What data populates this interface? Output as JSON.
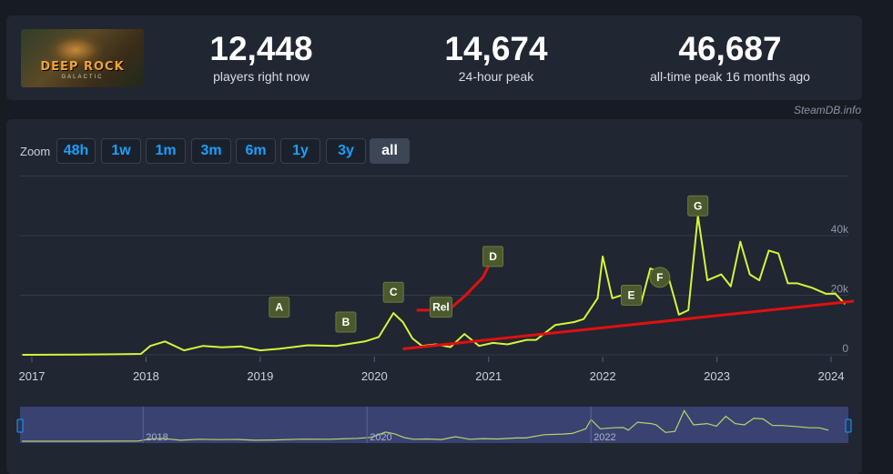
{
  "stats": {
    "now": {
      "value": "12,448",
      "label": "players right now"
    },
    "peak24": {
      "value": "14,674",
      "label": "24-hour peak"
    },
    "alltime": {
      "value": "46,687",
      "label": "all-time peak 16 months ago"
    }
  },
  "logo": {
    "title": "DEEP ROCK",
    "subtitle": "GALACTIC"
  },
  "credit": "SteamDB.info",
  "zoom": {
    "label": "Zoom",
    "buttons": [
      "48h",
      "1w",
      "1m",
      "3m",
      "6m",
      "1y",
      "3y",
      "all"
    ],
    "active": "all"
  },
  "colors": {
    "line": "#d4f53a",
    "annotation": "#e01010",
    "marker_bg": "#4a5a2c",
    "accent": "#1a9fff",
    "navigator_bg": "#3a4272"
  },
  "chart_data": {
    "type": "line",
    "x_ticks": [
      "2017",
      "2018",
      "2019",
      "2020",
      "2021",
      "2022",
      "2023",
      "2024"
    ],
    "y_ticks": [
      "0",
      "20k",
      "40k"
    ],
    "ylim": [
      0,
      60000
    ],
    "grid": true,
    "series": [
      {
        "values": [
          [
            "2016-12-01",
            0
          ],
          [
            "2017-06-01",
            50
          ],
          [
            "2017-12-15",
            300
          ],
          [
            "2018-01-15",
            3000
          ],
          [
            "2018-03-01",
            4500
          ],
          [
            "2018-05-01",
            1500
          ],
          [
            "2018-07-01",
            3000
          ],
          [
            "2018-09-01",
            2500
          ],
          [
            "2018-11-01",
            2800
          ],
          [
            "2019-01-01",
            1500
          ],
          [
            "2019-03-01",
            2000
          ],
          [
            "2019-06-01",
            3200
          ],
          [
            "2019-09-01",
            3000
          ],
          [
            "2019-12-01",
            4500
          ],
          [
            "2020-01-15",
            6000
          ],
          [
            "2020-03-01",
            14000
          ],
          [
            "2020-04-01",
            11000
          ],
          [
            "2020-05-01",
            5500
          ],
          [
            "2020-06-01",
            3000
          ],
          [
            "2020-07-15",
            3500
          ],
          [
            "2020-09-01",
            2600
          ],
          [
            "2020-10-15",
            7000
          ],
          [
            "2020-12-01",
            3000
          ],
          [
            "2021-01-15",
            4000
          ],
          [
            "2021-03-01",
            3500
          ],
          [
            "2021-05-01",
            5000
          ],
          [
            "2021-06-01",
            5000
          ],
          [
            "2021-08-01",
            10000
          ],
          [
            "2021-10-01",
            11000
          ],
          [
            "2021-11-01",
            12000
          ],
          [
            "2021-12-15",
            19000
          ],
          [
            "2022-01-01",
            33000
          ],
          [
            "2022-02-01",
            19000
          ],
          [
            "2022-03-15",
            20500
          ],
          [
            "2022-04-15",
            21000
          ],
          [
            "2022-05-01",
            17000
          ],
          [
            "2022-06-01",
            29000
          ],
          [
            "2022-07-15",
            27000
          ],
          [
            "2022-08-01",
            25000
          ],
          [
            "2022-09-01",
            13500
          ],
          [
            "2022-10-01",
            15000
          ],
          [
            "2022-11-01",
            46687
          ],
          [
            "2022-12-01",
            25000
          ],
          [
            "2023-01-15",
            27000
          ],
          [
            "2023-02-15",
            23000
          ],
          [
            "2023-03-15",
            38000
          ],
          [
            "2023-04-15",
            27000
          ],
          [
            "2023-05-15",
            25000
          ],
          [
            "2023-06-15",
            35000
          ],
          [
            "2023-07-15",
            34000
          ],
          [
            "2023-08-15",
            24000
          ],
          [
            "2023-09-15",
            24000
          ],
          [
            "2023-11-01",
            22500
          ],
          [
            "2023-12-15",
            20500
          ],
          [
            "2024-01-15",
            20500
          ],
          [
            "2024-02-15",
            17000
          ]
        ]
      }
    ],
    "markers": [
      {
        "label": "A",
        "date": "2019-03-01",
        "value": 16000
      },
      {
        "label": "B",
        "date": "2019-10-01",
        "value": 11000
      },
      {
        "label": "C",
        "date": "2020-03-01",
        "value": 21000
      },
      {
        "label": "Rel",
        "date": "2020-08-01",
        "value": 16000
      },
      {
        "label": "D",
        "date": "2021-01-15",
        "value": 33000
      },
      {
        "label": "E",
        "date": "2022-04-01",
        "value": 20000
      },
      {
        "label": "F",
        "date": "2022-07-01",
        "value": 26000
      },
      {
        "label": "G",
        "date": "2022-11-01",
        "value": 50000
      }
    ],
    "navigator": {
      "labels": [
        "2018",
        "2020",
        "2022"
      ]
    }
  }
}
